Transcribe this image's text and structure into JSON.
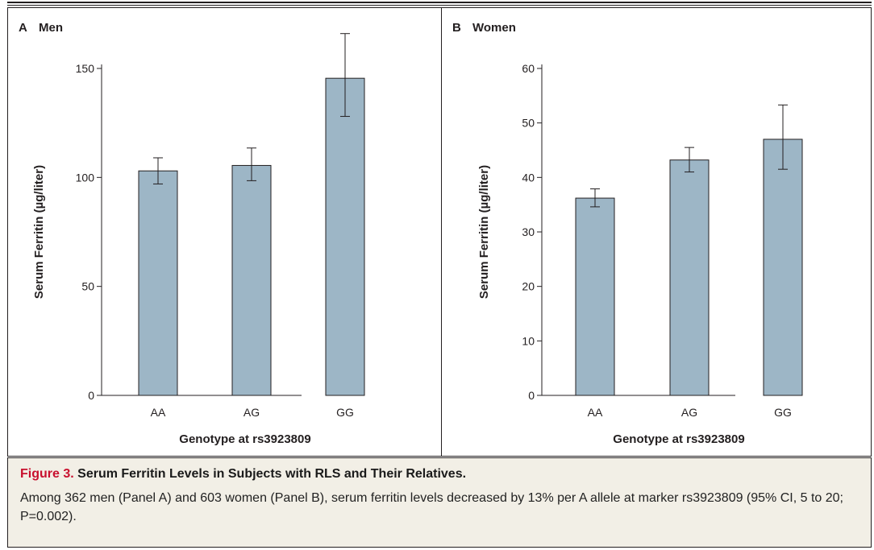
{
  "chart_data": [
    {
      "type": "bar",
      "panel_letter": "A",
      "panel_title": "Men",
      "xlabel": "Genotype at rs3923809",
      "ylabel": "Serum Ferritin (µg/liter)",
      "categories": [
        "AA",
        "AG",
        "GG"
      ],
      "values": [
        103,
        105.5,
        145.5
      ],
      "error_low": [
        97,
        98.5,
        128
      ],
      "error_high": [
        109,
        113.5,
        166
      ],
      "ylim": [
        0,
        150
      ],
      "yticks": [
        0,
        50,
        100,
        150
      ],
      "grid": false,
      "bar_color": "#9db6c6"
    },
    {
      "type": "bar",
      "panel_letter": "B",
      "panel_title": "Women",
      "xlabel": "Genotype at rs3923809",
      "ylabel": "Serum Ferritin (µg/liter)",
      "categories": [
        "AA",
        "AG",
        "GG"
      ],
      "values": [
        36.2,
        43.2,
        47
      ],
      "error_low": [
        34.6,
        41,
        41.5
      ],
      "error_high": [
        37.9,
        45.5,
        53.3
      ],
      "ylim": [
        0,
        60
      ],
      "yticks": [
        0,
        10,
        20,
        30,
        40,
        50,
        60
      ],
      "grid": false,
      "bar_color": "#9db6c6"
    }
  ],
  "caption": {
    "figure_number": "Figure 3.",
    "title": "Serum Ferritin Levels in Subjects with RLS and Their Relatives.",
    "text": "Among 362 men (Panel A) and 603 women (Panel B), serum ferritin levels decreased by 13% per A allele at marker rs3923809 (95% CI, 5 to 20; P=0.002)."
  }
}
